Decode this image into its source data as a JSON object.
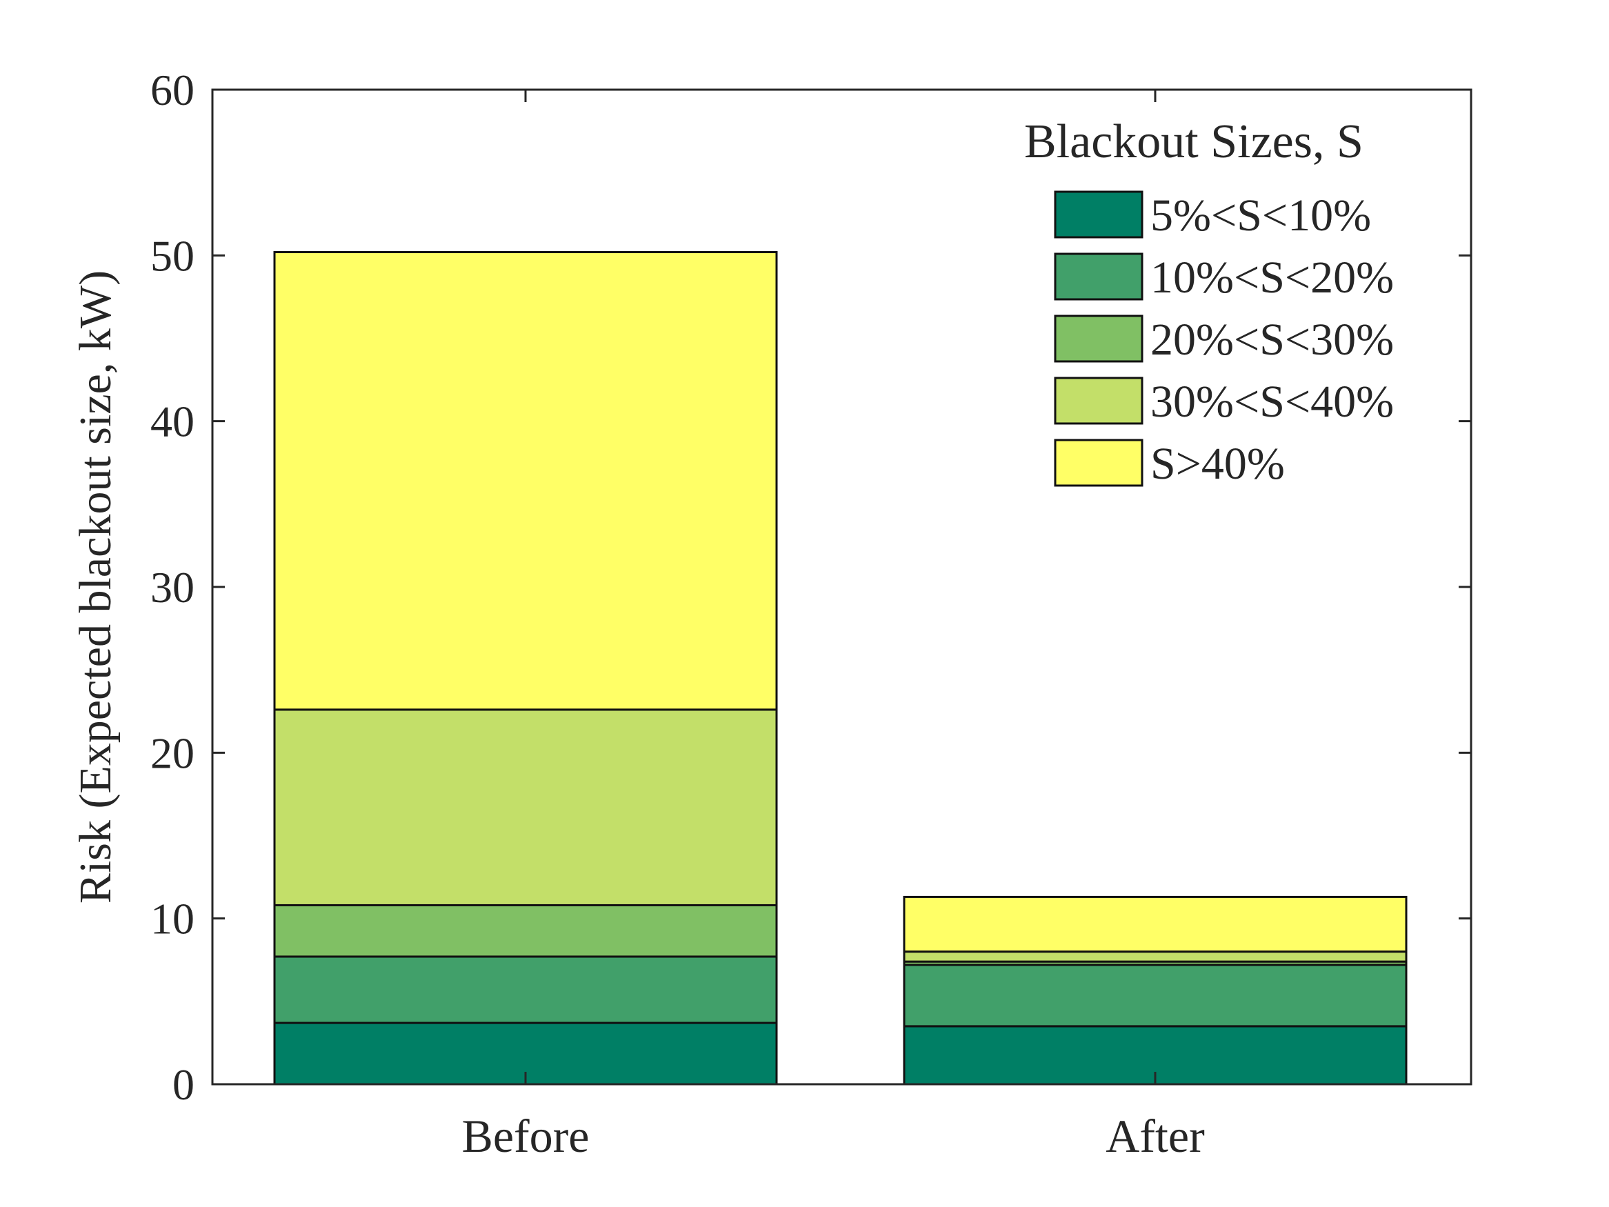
{
  "chart_data": {
    "type": "bar",
    "stacked": true,
    "categories": [
      "Before",
      "After"
    ],
    "series": [
      {
        "name": "5%<S<10%",
        "values": [
          3.7,
          3.5
        ],
        "color": "#007f65"
      },
      {
        "name": "10%<S<20%",
        "values": [
          4.0,
          3.7
        ],
        "color": "#41a06a"
      },
      {
        "name": "20%<S<30%",
        "values": [
          3.1,
          0.2
        ],
        "color": "#80c064"
      },
      {
        "name": "30%<S<40%",
        "values": [
          11.8,
          0.6
        ],
        "color": "#c3df69"
      },
      {
        "name": "S>40%",
        "values": [
          27.6,
          3.3
        ],
        "color": "#ffff66"
      }
    ],
    "title": "",
    "xlabel": "",
    "ylabel": "Risk (Expected blackout size, kW)",
    "ylim": [
      0,
      60
    ],
    "yticks": [
      "0",
      "10",
      "20",
      "30",
      "40",
      "50",
      "60"
    ],
    "legend": {
      "title": "Blackout Sizes, S",
      "placement": "top-right"
    },
    "grid": false
  }
}
